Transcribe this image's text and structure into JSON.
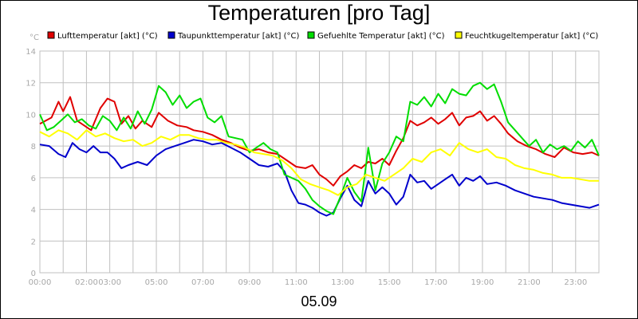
{
  "chart_data": {
    "type": "line",
    "title": "Temperaturen [pro Tag]",
    "xlabel": "05.09",
    "yunit": "°C",
    "ylim": [
      0,
      14
    ],
    "y_ticks": [
      "0",
      "2",
      "4",
      "6",
      "8",
      "10",
      "12",
      "14"
    ],
    "xlim": [
      0,
      24
    ],
    "x_ticks": [
      {
        "h": 0,
        "label": "00:00"
      },
      {
        "h": 2,
        "label": "02:00"
      },
      {
        "h": 3,
        "label": "03:00"
      },
      {
        "h": 5,
        "label": "05:00"
      },
      {
        "h": 7,
        "label": "07:00"
      },
      {
        "h": 9,
        "label": "09:00"
      },
      {
        "h": 11,
        "label": "11:00"
      },
      {
        "h": 13,
        "label": "13:00"
      },
      {
        "h": 15,
        "label": "15:00"
      },
      {
        "h": 17,
        "label": "17:00"
      },
      {
        "h": 19,
        "label": "19:00"
      },
      {
        "h": 21,
        "label": "21:00"
      },
      {
        "h": 23,
        "label": "23:00"
      }
    ],
    "grid": true,
    "legend_position": "top",
    "series": [
      {
        "name": "Lufttemperatur [akt] (°C)",
        "color": "#e00000",
        "x": [
          0.0,
          0.5,
          0.8,
          1.0,
          1.3,
          1.6,
          1.9,
          2.2,
          2.6,
          2.9,
          3.2,
          3.5,
          3.8,
          4.1,
          4.4,
          4.8,
          5.1,
          5.5,
          5.9,
          6.3,
          6.6,
          7.0,
          7.4,
          7.8,
          8.2,
          8.6,
          9.0,
          9.4,
          9.8,
          10.2,
          10.6,
          11.0,
          11.4,
          11.7,
          12.0,
          12.3,
          12.6,
          12.9,
          13.2,
          13.5,
          13.8,
          14.1,
          14.4,
          14.7,
          15.0,
          15.3,
          15.6,
          15.9,
          16.2,
          16.5,
          16.8,
          17.1,
          17.4,
          17.7,
          18.0,
          18.3,
          18.6,
          18.9,
          19.2,
          19.5,
          19.8,
          20.1,
          20.5,
          20.9,
          21.3,
          21.7,
          22.1,
          22.5,
          22.9,
          23.3,
          23.7,
          24.0
        ],
        "values": [
          9.4,
          9.8,
          10.8,
          10.2,
          11.1,
          9.6,
          9.3,
          9.0,
          10.4,
          11.0,
          10.8,
          9.4,
          9.9,
          9.1,
          9.6,
          9.2,
          10.1,
          9.6,
          9.3,
          9.2,
          9.0,
          8.9,
          8.7,
          8.4,
          8.2,
          7.9,
          7.7,
          7.8,
          7.6,
          7.5,
          7.1,
          6.7,
          6.6,
          6.8,
          6.2,
          5.9,
          5.5,
          6.1,
          6.4,
          6.8,
          6.6,
          7.0,
          6.9,
          7.2,
          6.8,
          7.7,
          8.5,
          9.6,
          9.3,
          9.5,
          9.8,
          9.4,
          9.7,
          10.1,
          9.3,
          9.8,
          9.9,
          10.2,
          9.6,
          9.9,
          9.4,
          8.8,
          8.3,
          8.0,
          7.8,
          7.5,
          7.3,
          7.9,
          7.6,
          7.5,
          7.6,
          7.4
        ]
      },
      {
        "name": "Taupunkttemperatur [akt] (°C)",
        "color": "#0000cc",
        "x": [
          0.0,
          0.4,
          0.8,
          1.1,
          1.4,
          1.7,
          2.0,
          2.3,
          2.6,
          2.9,
          3.2,
          3.5,
          3.8,
          4.2,
          4.6,
          5.0,
          5.4,
          5.8,
          6.2,
          6.6,
          7.0,
          7.4,
          7.8,
          8.2,
          8.6,
          9.0,
          9.4,
          9.8,
          10.2,
          10.5,
          10.8,
          11.1,
          11.4,
          11.7,
          12.0,
          12.3,
          12.6,
          12.9,
          13.2,
          13.5,
          13.8,
          14.1,
          14.4,
          14.7,
          15.0,
          15.3,
          15.6,
          15.9,
          16.2,
          16.5,
          16.8,
          17.1,
          17.4,
          17.7,
          18.0,
          18.3,
          18.6,
          18.9,
          19.2,
          19.6,
          20.0,
          20.4,
          20.8,
          21.2,
          21.6,
          22.0,
          22.4,
          22.8,
          23.2,
          23.6,
          24.0
        ],
        "values": [
          8.1,
          8.0,
          7.5,
          7.3,
          8.2,
          7.8,
          7.6,
          8.0,
          7.6,
          7.6,
          7.2,
          6.6,
          6.8,
          7.0,
          6.8,
          7.4,
          7.8,
          8.0,
          8.2,
          8.4,
          8.3,
          8.1,
          8.2,
          7.9,
          7.6,
          7.2,
          6.8,
          6.7,
          6.9,
          6.4,
          5.2,
          4.4,
          4.3,
          4.1,
          3.8,
          3.6,
          3.8,
          4.7,
          5.5,
          4.6,
          4.2,
          5.8,
          5.0,
          5.4,
          5.0,
          4.3,
          4.8,
          6.2,
          5.7,
          5.8,
          5.3,
          5.6,
          5.9,
          6.2,
          5.5,
          6.0,
          5.8,
          6.1,
          5.6,
          5.7,
          5.5,
          5.2,
          5.0,
          4.8,
          4.7,
          4.6,
          4.4,
          4.3,
          4.2,
          4.1,
          4.3
        ]
      },
      {
        "name": "Gefuehlte Temperatur [akt] (°C)",
        "color": "#00dd00",
        "x": [
          0.0,
          0.3,
          0.6,
          0.9,
          1.2,
          1.5,
          1.8,
          2.1,
          2.4,
          2.7,
          3.0,
          3.3,
          3.6,
          3.9,
          4.2,
          4.5,
          4.8,
          5.1,
          5.4,
          5.7,
          6.0,
          6.3,
          6.6,
          6.9,
          7.2,
          7.5,
          7.8,
          8.1,
          8.4,
          8.7,
          9.0,
          9.3,
          9.6,
          9.9,
          10.2,
          10.5,
          10.8,
          11.1,
          11.4,
          11.7,
          12.0,
          12.3,
          12.6,
          12.9,
          13.2,
          13.5,
          13.8,
          14.1,
          14.4,
          14.7,
          15.0,
          15.3,
          15.6,
          15.9,
          16.2,
          16.5,
          16.8,
          17.1,
          17.4,
          17.7,
          18.0,
          18.3,
          18.6,
          18.9,
          19.2,
          19.5,
          19.8,
          20.1,
          20.4,
          20.7,
          21.0,
          21.3,
          21.6,
          21.9,
          22.2,
          22.5,
          22.8,
          23.1,
          23.4,
          23.7,
          24.0
        ],
        "values": [
          10.0,
          9.0,
          9.2,
          9.6,
          10.0,
          9.5,
          9.7,
          9.3,
          9.1,
          9.9,
          9.6,
          9.0,
          9.8,
          9.1,
          10.2,
          9.4,
          10.3,
          11.8,
          11.4,
          10.6,
          11.2,
          10.4,
          10.8,
          11.0,
          9.8,
          9.5,
          9.9,
          8.6,
          8.5,
          8.4,
          7.6,
          7.9,
          8.2,
          7.8,
          7.6,
          6.2,
          6.0,
          5.8,
          5.3,
          4.6,
          4.2,
          3.9,
          3.7,
          4.8,
          6.0,
          5.1,
          4.5,
          7.9,
          5.2,
          6.9,
          7.6,
          8.6,
          8.3,
          10.8,
          10.6,
          11.1,
          10.5,
          11.3,
          10.7,
          11.6,
          11.3,
          11.2,
          11.8,
          12.0,
          11.6,
          11.9,
          10.8,
          9.5,
          9.0,
          8.5,
          8.0,
          8.4,
          7.6,
          8.1,
          7.8,
          8.0,
          7.7,
          8.3,
          7.9,
          8.4,
          7.4
        ]
      },
      {
        "name": "Feuchtkugeltemperatur [akt] (°C)",
        "color": "#ffff00",
        "x": [
          0.0,
          0.4,
          0.8,
          1.2,
          1.6,
          2.0,
          2.4,
          2.8,
          3.2,
          3.6,
          4.0,
          4.4,
          4.8,
          5.2,
          5.6,
          6.0,
          6.4,
          6.8,
          7.2,
          7.6,
          8.0,
          8.4,
          8.8,
          9.2,
          9.6,
          10.0,
          10.4,
          10.8,
          11.2,
          11.6,
          12.0,
          12.4,
          12.8,
          13.2,
          13.6,
          14.0,
          14.4,
          14.8,
          15.2,
          15.6,
          16.0,
          16.4,
          16.8,
          17.2,
          17.6,
          18.0,
          18.4,
          18.8,
          19.2,
          19.6,
          20.0,
          20.4,
          20.8,
          21.2,
          21.6,
          22.0,
          22.4,
          22.8,
          23.2,
          23.6,
          24.0
        ],
        "values": [
          8.9,
          8.6,
          9.0,
          8.8,
          8.4,
          9.0,
          8.6,
          8.8,
          8.5,
          8.3,
          8.4,
          8.0,
          8.2,
          8.6,
          8.4,
          8.7,
          8.7,
          8.5,
          8.4,
          8.4,
          8.2,
          8.1,
          7.9,
          7.6,
          7.5,
          7.4,
          7.1,
          6.6,
          5.9,
          5.6,
          5.4,
          5.2,
          4.9,
          5.4,
          5.6,
          6.2,
          6.0,
          5.8,
          6.2,
          6.6,
          7.2,
          7.0,
          7.6,
          7.8,
          7.4,
          8.2,
          7.8,
          7.6,
          7.8,
          7.3,
          7.2,
          6.8,
          6.6,
          6.5,
          6.3,
          6.2,
          6.0,
          6.0,
          5.9,
          5.8,
          5.8
        ]
      }
    ]
  },
  "colors": {
    "grid": "#c0c0c0",
    "axis_text": "#a8a8a8"
  }
}
